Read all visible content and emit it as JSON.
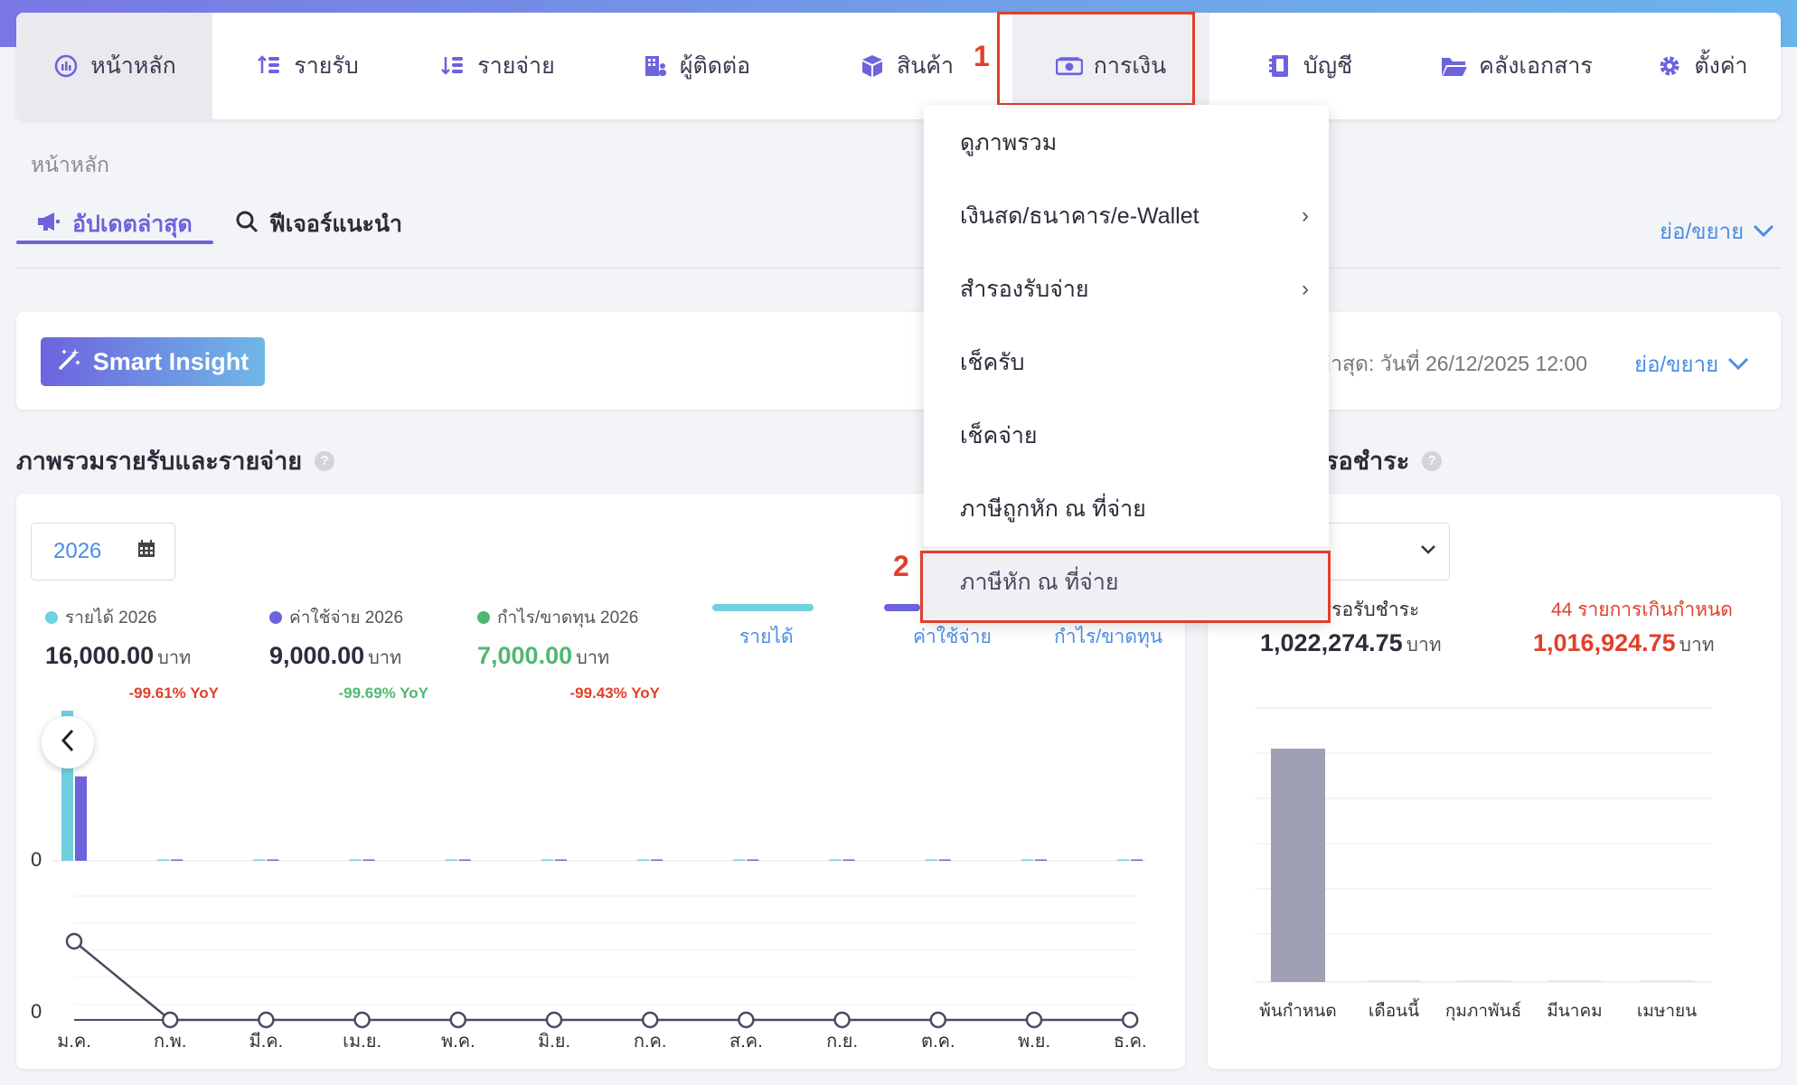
{
  "nav": {
    "items": [
      {
        "label": "หน้าหลัก",
        "icon": "dashboard-icon"
      },
      {
        "label": "รายรับ",
        "icon": "income-icon"
      },
      {
        "label": "รายจ่าย",
        "icon": "expense-icon"
      },
      {
        "label": "ผู้ติดต่อ",
        "icon": "contacts-icon"
      },
      {
        "label": "สินค้า",
        "icon": "box-icon"
      },
      {
        "label": "การเงิน",
        "icon": "money-icon"
      },
      {
        "label": "บัญชี",
        "icon": "ledger-icon"
      },
      {
        "label": "คลังเอกสาร",
        "icon": "folder-icon"
      },
      {
        "label": "ตั้งค่า",
        "icon": "gear-icon"
      }
    ]
  },
  "annotations": {
    "step1": "1",
    "step2": "2"
  },
  "breadcrumb": "หน้าหลัก",
  "tabs": {
    "active": "อัปเดตล่าสุด",
    "second": "ฟีเจอร์แนะนำ"
  },
  "collapse_label": "ย่อ/ขยาย",
  "insight": {
    "button": "Smart Insight",
    "updated": "ล่าสุด: วันที่ 26/12/2025 12:00",
    "collapse": "ย่อ/ขยาย"
  },
  "sections": {
    "overview_title": "ภาพรวมรายรับและรายจ่าย",
    "receivable_title": "รอชำระ",
    "help": "?"
  },
  "overview": {
    "year": "2026",
    "stats": [
      {
        "label": "รายได้ 2026",
        "value": "16,000.00",
        "unit": "บาท",
        "yoy": "-99.61% YoY",
        "color": "#6fd0e0",
        "yoy_color": "#e0402b"
      },
      {
        "label": "ค่าใช้จ่าย 2026",
        "value": "9,000.00",
        "unit": "บาท",
        "yoy": "-99.69% YoY",
        "color": "#6c63dd",
        "yoy_color": "#4fb870"
      },
      {
        "label": "กำไร/ขาดทุน 2026",
        "value": "7,000.00",
        "unit": "บาท",
        "yoy": "-99.43% YoY",
        "color": "#4fb870",
        "yoy_color": "#e0402b"
      }
    ],
    "legend": [
      "รายได้",
      "ค่าใช้จ่าย",
      "กำไร/ขาดทุน"
    ],
    "y_zero": "0"
  },
  "chart_data": [
    {
      "type": "bar",
      "categories": [
        "ม.ค.",
        "ก.พ.",
        "มี.ค.",
        "เม.ย.",
        "พ.ค.",
        "มิ.ย.",
        "ก.ค.",
        "ส.ค.",
        "ก.ย.",
        "ต.ค.",
        "พ.ย.",
        "ธ.ค."
      ],
      "series": [
        {
          "name": "รายได้",
          "values": [
            16000,
            0,
            0,
            0,
            0,
            0,
            0,
            0,
            0,
            0,
            0,
            0
          ],
          "color": "#6fd0e0"
        },
        {
          "name": "ค่าใช้จ่าย",
          "values": [
            9000,
            0,
            0,
            0,
            0,
            0,
            0,
            0,
            0,
            0,
            0,
            0
          ],
          "color": "#6c63dd"
        }
      ]
    },
    {
      "type": "line",
      "categories": [
        "ม.ค.",
        "ก.พ.",
        "มี.ค.",
        "เม.ย.",
        "พ.ค.",
        "มิ.ย.",
        "ก.ค.",
        "ส.ค.",
        "ก.ย.",
        "ต.ค.",
        "พ.ย.",
        "ธ.ค."
      ],
      "series": [
        {
          "name": "กำไร/ขาดทุน",
          "values": [
            7000,
            0,
            0,
            0,
            0,
            0,
            0,
            0,
            0,
            0,
            0,
            0
          ],
          "color": "#4a4a62"
        }
      ]
    },
    {
      "type": "bar",
      "categories": [
        "พ้นกำหนด",
        "เดือนนี้",
        "กุมภาพันธ์",
        "มีนาคม",
        "เมษายน"
      ],
      "values": [
        1016924.75,
        0,
        0,
        0,
        0
      ],
      "color": "#a0a0b4"
    }
  ],
  "receivable": {
    "pending_label": "รายการรอรับชำระ",
    "pending_value": "1,022,274.75",
    "overdue_label": "44 รายการเกินกำหนด",
    "overdue_value": "1,016,924.75",
    "unit": "บาท"
  },
  "dropdown": {
    "items": [
      {
        "label": "ดูภาพรวม",
        "submenu": false
      },
      {
        "label": "เงินสด/ธนาคาร/e-Wallet",
        "submenu": true
      },
      {
        "label": "สำรองรับจ่าย",
        "submenu": true
      },
      {
        "label": "เช็ครับ",
        "submenu": false
      },
      {
        "label": "เช็คจ่าย",
        "submenu": false
      },
      {
        "label": "ภาษีถูกหัก ณ ที่จ่าย",
        "submenu": false
      },
      {
        "label": "ภาษีหัก ณ ที่จ่าย",
        "submenu": false
      }
    ]
  }
}
